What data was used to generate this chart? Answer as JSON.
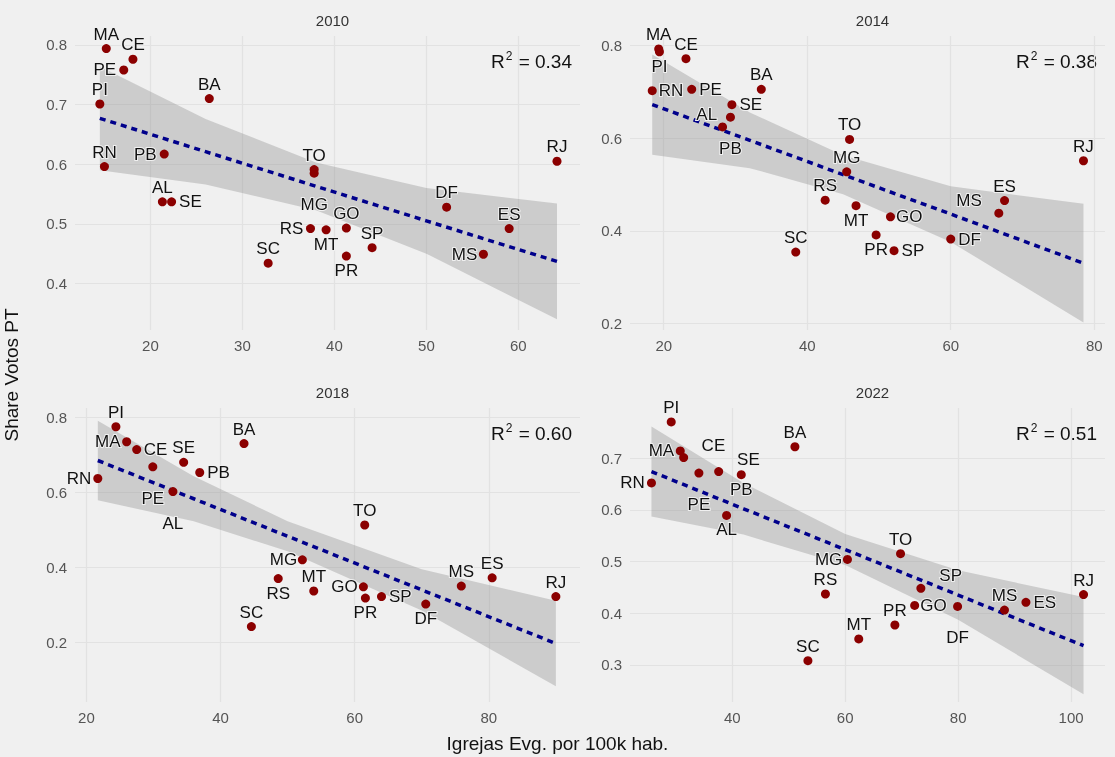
{
  "chart_data": [
    {
      "type": "scatter",
      "title": "2010",
      "ylabel": "Share Votos PT",
      "xlim": [
        11.8,
        66.7
      ],
      "ylim": [
        0.322,
        0.815
      ],
      "xticks": [
        20,
        30,
        40,
        50,
        60
      ],
      "yticks": [
        0.4,
        0.5,
        0.6,
        0.7,
        0.8
      ],
      "grid": true,
      "marker": "circle",
      "annotations": [
        "R$^{2}$ = 0.34"
      ],
      "series": [
        {
          "type": "scatter",
          "color": "#8b0000",
          "x": [
            15.2,
            18.1,
            17.1,
            14.5,
            26.4,
            21.5,
            15.0,
            21.3,
            22.3,
            37.8,
            37.8,
            32.8,
            37.4,
            39.1,
            41.3,
            41.3,
            44.1,
            52.2,
            59.0,
            56.2,
            64.2
          ],
          "values": [
            0.794,
            0.776,
            0.758,
            0.701,
            0.71,
            0.617,
            0.596,
            0.537,
            0.537,
            0.591,
            0.585,
            0.434,
            0.492,
            0.49,
            0.493,
            0.446,
            0.46,
            0.528,
            0.492,
            0.449,
            0.605
          ],
          "value_labels": [
            "MA",
            "CE",
            "PE",
            "PI",
            "BA",
            "PB",
            "RN",
            "AL",
            "SE",
            "TO",
            "MG",
            "SC",
            "RS",
            "MT",
            "GO",
            "PR",
            "SP",
            "DF",
            "ES",
            "MS",
            "RJ"
          ]
        },
        {
          "type": "line",
          "color": "#00008b",
          "line_style": "dashed",
          "marker": "none",
          "x": [
            14.5,
            26,
            38,
            50,
            64.2
          ],
          "values": [
            0.677,
            0.621,
            0.563,
            0.505,
            0.437
          ],
          "lower": [
            0.59,
            0.566,
            0.523,
            0.45,
            0.34
          ],
          "upper": [
            0.764,
            0.676,
            0.603,
            0.56,
            0.534
          ]
        }
      ]
    },
    {
      "type": "scatter",
      "title": "2014",
      "xlim": [
        15.3,
        81.5
      ],
      "ylim": [
        0.186,
        0.82
      ],
      "xticks": [
        20,
        40,
        60,
        80
      ],
      "yticks": [
        0.2,
        0.4,
        0.6,
        0.8
      ],
      "grid": true,
      "marker": "circle",
      "annotations": [
        "R$^{2}$ = 0.38"
      ],
      "series": [
        {
          "type": "scatter",
          "color": "#8b0000",
          "x": [
            19.3,
            19.4,
            23.1,
            18.4,
            23.9,
            33.6,
            29.5,
            29.3,
            28.2,
            45.9,
            45.5,
            42.5,
            46.8,
            51.6,
            49.6,
            52.1,
            38.4,
            60.0,
            67.5,
            66.7,
            78.5
          ],
          "values": [
            0.792,
            0.786,
            0.771,
            0.702,
            0.705,
            0.705,
            0.672,
            0.645,
            0.624,
            0.597,
            0.527,
            0.466,
            0.454,
            0.43,
            0.391,
            0.357,
            0.354,
            0.382,
            0.465,
            0.438,
            0.551
          ],
          "value_labels": [
            "MA",
            "PI",
            "CE",
            "RN",
            "PE",
            "BA",
            "SE",
            "PB",
            "AL",
            "TO",
            "MG",
            "RS",
            "MT",
            "GO",
            "PR",
            "SP",
            "SC",
            "DF",
            "ES",
            "MS",
            "RJ"
          ]
        },
        {
          "type": "line",
          "color": "#00008b",
          "line_style": "dashed",
          "marker": "none",
          "x": [
            18.4,
            32,
            45,
            60,
            78.5
          ],
          "values": [
            0.672,
            0.595,
            0.521,
            0.436,
            0.33
          ],
          "lower": [
            0.564,
            0.535,
            0.479,
            0.376,
            0.202
          ],
          "upper": [
            0.78,
            0.655,
            0.563,
            0.496,
            0.458
          ]
        }
      ]
    },
    {
      "type": "scatter",
      "title": "2018",
      "xlim": [
        18.3,
        93.6
      ],
      "ylim": [
        0.04,
        0.824
      ],
      "xticks": [
        20,
        40,
        60,
        80
      ],
      "yticks": [
        0.2,
        0.4,
        0.6,
        0.8
      ],
      "grid": true,
      "marker": "circle",
      "annotations": [
        "R$^{2}$ = 0.60"
      ],
      "series": [
        {
          "type": "scatter",
          "color": "#8b0000",
          "x": [
            24.4,
            26.0,
            27.5,
            29.9,
            34.5,
            36.9,
            32.9,
            21.7,
            43.5,
            61.5,
            52.2,
            48.6,
            53.9,
            44.6,
            61.3,
            61.6,
            64.0,
            70.6,
            75.9,
            80.5,
            90.0
          ],
          "values": [
            0.774,
            0.734,
            0.713,
            0.667,
            0.679,
            0.652,
            0.601,
            0.636,
            0.729,
            0.512,
            0.419,
            0.369,
            0.336,
            0.241,
            0.347,
            0.317,
            0.321,
            0.301,
            0.349,
            0.371,
            0.321
          ],
          "value_labels": [
            "PI",
            "MA",
            "CE",
            "PE",
            "SE",
            "PB",
            "AL",
            "RN",
            "BA",
            "TO",
            "MG",
            "RS",
            "MT",
            "SC",
            "GO",
            "PR",
            "SP",
            "DF",
            "MS",
            "ES",
            "RJ"
          ]
        },
        {
          "type": "line",
          "color": "#00008b",
          "line_style": "dashed",
          "marker": "none",
          "x": [
            21.7,
            36,
            50,
            70,
            90
          ],
          "values": [
            0.684,
            0.582,
            0.482,
            0.339,
            0.196
          ],
          "lower": [
            0.578,
            0.522,
            0.442,
            0.284,
            0.082
          ],
          "upper": [
            0.79,
            0.642,
            0.522,
            0.394,
            0.31
          ]
        }
      ]
    },
    {
      "type": "scatter",
      "title": "2022",
      "xlabel": "Igrejas Evg. por 100k hab.",
      "xlim": [
        21.9,
        106
      ],
      "ylim": [
        0.228,
        0.797
      ],
      "xticks": [
        40,
        60,
        80,
        100
      ],
      "yticks": [
        0.3,
        0.4,
        0.5,
        0.6,
        0.7
      ],
      "grid": true,
      "marker": "circle",
      "annotations": [
        "R$^{2}$ = 0.51"
      ],
      "series": [
        {
          "type": "scatter",
          "color": "#8b0000",
          "x": [
            29.2,
            30.8,
            31.4,
            34.1,
            37.6,
            41.6,
            25.7,
            39.0,
            51.1,
            60.4,
            69.8,
            73.4,
            72.3,
            79.9,
            56.5,
            68.8,
            62.4,
            53.4,
            88.2,
            92.0,
            102.2
          ],
          "values": [
            0.77,
            0.714,
            0.701,
            0.671,
            0.674,
            0.668,
            0.652,
            0.589,
            0.722,
            0.504,
            0.515,
            0.448,
            0.415,
            0.413,
            0.437,
            0.377,
            0.35,
            0.308,
            0.406,
            0.421,
            0.436
          ],
          "value_labels": [
            "PI",
            "MA",
            "CE",
            "PE",
            "SE",
            "PB",
            "RN",
            "AL",
            "BA",
            "MG",
            "TO",
            "SP",
            "GO",
            "DF",
            "RS",
            "PR",
            "MT",
            "SC",
            "MS",
            "ES",
            "RJ"
          ]
        },
        {
          "type": "line",
          "color": "#00008b",
          "line_style": "dashed",
          "marker": "none",
          "x": [
            25.7,
            42,
            60,
            80,
            102.2
          ],
          "values": [
            0.674,
            0.602,
            0.523,
            0.435,
            0.337
          ],
          "lower": [
            0.587,
            0.552,
            0.493,
            0.387,
            0.243
          ],
          "upper": [
            0.761,
            0.652,
            0.553,
            0.483,
            0.431
          ]
        }
      ]
    }
  ]
}
